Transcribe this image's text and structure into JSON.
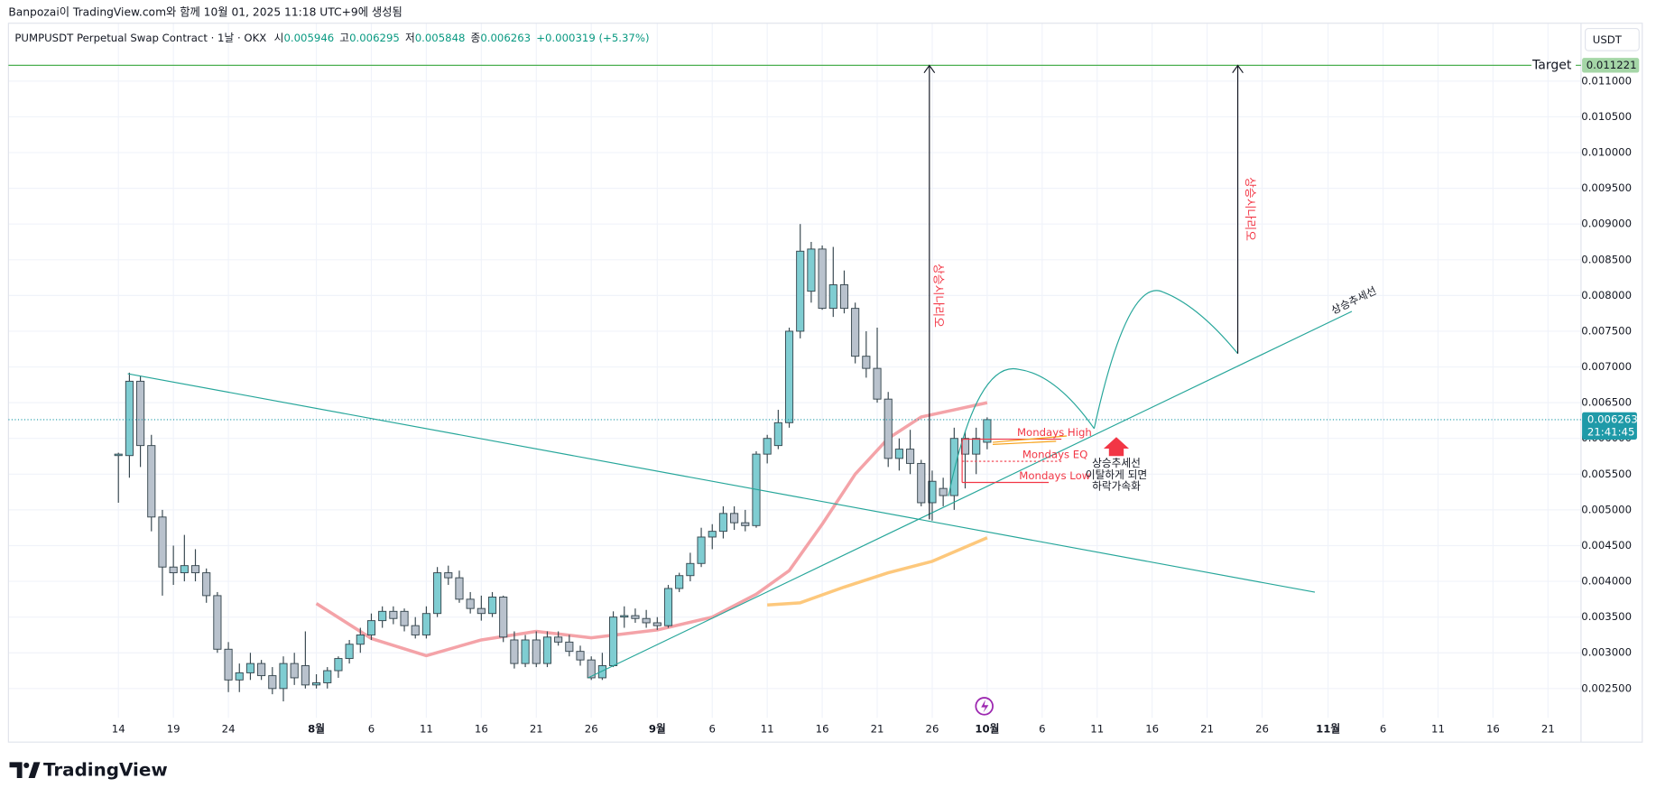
{
  "header": {
    "credit": "Banpozai이 TradingView.com와 함께 10월 01, 2025 11:18 UTC+9에 생성됨",
    "symbol": "PUMPUSDT Perpetual Swap Contract · 1날 · OKX",
    "open_label": "시",
    "high_label": "고",
    "low_label": "저",
    "close_label": "종",
    "change": "+0.000319 (+5.37%)"
  },
  "currency": "USDT",
  "logo": "TradingView",
  "chart_data": {
    "type": "candlestick",
    "up_color": "#7fcdd2",
    "down_color": "#b9c2cd",
    "wick_color": "#37474f",
    "grid": true,
    "xlim": [
      "2025-07-04",
      "2025-11-24"
    ],
    "ylim": [
      0.00209,
      0.01181
    ],
    "yticks": [
      {
        "value": 0.0025,
        "label": "0.002500"
      },
      {
        "value": 0.003,
        "label": "0.003000"
      },
      {
        "value": 0.0035,
        "label": "0.003500"
      },
      {
        "value": 0.004,
        "label": "0.004000"
      },
      {
        "value": 0.0045,
        "label": "0.004500"
      },
      {
        "value": 0.005,
        "label": "0.005000"
      },
      {
        "value": 0.0055,
        "label": "0.005500"
      },
      {
        "value": 0.006,
        "label": "0.006000"
      },
      {
        "value": 0.0065,
        "label": "0.006500"
      },
      {
        "value": 0.007,
        "label": "0.007000"
      },
      {
        "value": 0.0075,
        "label": "0.007500"
      },
      {
        "value": 0.008,
        "label": "0.008000"
      },
      {
        "value": 0.0085,
        "label": "0.008500"
      },
      {
        "value": 0.009,
        "label": "0.009000"
      },
      {
        "value": 0.0095,
        "label": "0.009500"
      },
      {
        "value": 0.01,
        "label": "0.010000"
      },
      {
        "value": 0.0105,
        "label": "0.010500"
      },
      {
        "value": 0.011,
        "label": "0.011000"
      }
    ],
    "xticks": [
      {
        "value": "2025-07-14",
        "label": "14"
      },
      {
        "value": "2025-07-19",
        "label": "19"
      },
      {
        "value": "2025-07-24",
        "label": "24"
      },
      {
        "value": "2025-08-01",
        "label": "8월"
      },
      {
        "value": "2025-08-06",
        "label": "6"
      },
      {
        "value": "2025-08-11",
        "label": "11"
      },
      {
        "value": "2025-08-16",
        "label": "16"
      },
      {
        "value": "2025-08-21",
        "label": "21"
      },
      {
        "value": "2025-08-26",
        "label": "26"
      },
      {
        "value": "2025-09-01",
        "label": "9월"
      },
      {
        "value": "2025-09-06",
        "label": "6"
      },
      {
        "value": "2025-09-11",
        "label": "11"
      },
      {
        "value": "2025-09-16",
        "label": "16"
      },
      {
        "value": "2025-09-21",
        "label": "21"
      },
      {
        "value": "2025-09-26",
        "label": "26"
      },
      {
        "value": "2025-10-01",
        "label": "10월"
      },
      {
        "value": "2025-10-06",
        "label": "6"
      },
      {
        "value": "2025-10-11",
        "label": "11"
      },
      {
        "value": "2025-10-16",
        "label": "16"
      },
      {
        "value": "2025-10-21",
        "label": "21"
      },
      {
        "value": "2025-10-26",
        "label": "26"
      },
      {
        "value": "2025-11-01",
        "label": "11월"
      },
      {
        "value": "2025-11-06",
        "label": "6"
      },
      {
        "value": "2025-11-11",
        "label": "11"
      },
      {
        "value": "2025-11-16",
        "label": "16"
      },
      {
        "value": "2025-11-21",
        "label": "21"
      }
    ],
    "x": [
      "2025-07-14",
      "2025-07-15",
      "2025-07-16",
      "2025-07-17",
      "2025-07-18",
      "2025-07-19",
      "2025-07-20",
      "2025-07-21",
      "2025-07-22",
      "2025-07-23",
      "2025-07-24",
      "2025-07-25",
      "2025-07-26",
      "2025-07-27",
      "2025-07-28",
      "2025-07-29",
      "2025-07-30",
      "2025-07-31",
      "2025-08-01",
      "2025-08-02",
      "2025-08-03",
      "2025-08-04",
      "2025-08-05",
      "2025-08-06",
      "2025-08-07",
      "2025-08-08",
      "2025-08-09",
      "2025-08-10",
      "2025-08-11",
      "2025-08-12",
      "2025-08-13",
      "2025-08-14",
      "2025-08-15",
      "2025-08-16",
      "2025-08-17",
      "2025-08-18",
      "2025-08-19",
      "2025-08-20",
      "2025-08-21",
      "2025-08-22",
      "2025-08-23",
      "2025-08-24",
      "2025-08-25",
      "2025-08-26",
      "2025-08-27",
      "2025-08-28",
      "2025-08-29",
      "2025-08-30",
      "2025-08-31",
      "2025-09-01",
      "2025-09-02",
      "2025-09-03",
      "2025-09-04",
      "2025-09-05",
      "2025-09-06",
      "2025-09-07",
      "2025-09-08",
      "2025-09-09",
      "2025-09-10",
      "2025-09-11",
      "2025-09-12",
      "2025-09-13",
      "2025-09-14",
      "2025-09-15",
      "2025-09-16",
      "2025-09-17",
      "2025-09-18",
      "2025-09-19",
      "2025-09-20",
      "2025-09-21",
      "2025-09-22",
      "2025-09-23",
      "2025-09-24",
      "2025-09-25",
      "2025-09-26",
      "2025-09-27",
      "2025-09-28",
      "2025-09-29",
      "2025-09-30",
      "2025-10-01"
    ],
    "ohlc": [
      [
        0.00576,
        0.0058,
        0.0051,
        0.00578
      ],
      [
        0.00576,
        0.00692,
        0.00545,
        0.0068
      ],
      [
        0.0068,
        0.00688,
        0.0056,
        0.0059
      ],
      [
        0.0059,
        0.00605,
        0.0047,
        0.0049
      ],
      [
        0.0049,
        0.005,
        0.0038,
        0.0042
      ],
      [
        0.0042,
        0.0045,
        0.00395,
        0.00412
      ],
      [
        0.00412,
        0.00465,
        0.004,
        0.00422
      ],
      [
        0.00422,
        0.00445,
        0.004,
        0.00412
      ],
      [
        0.00412,
        0.00418,
        0.0037,
        0.0038
      ],
      [
        0.0038,
        0.00385,
        0.003,
        0.00305
      ],
      [
        0.00305,
        0.00315,
        0.00245,
        0.00262
      ],
      [
        0.00262,
        0.00285,
        0.00245,
        0.00272
      ],
      [
        0.00272,
        0.003,
        0.00262,
        0.00285
      ],
      [
        0.00285,
        0.0029,
        0.00262,
        0.00268
      ],
      [
        0.00268,
        0.0028,
        0.00242,
        0.0025
      ],
      [
        0.0025,
        0.00295,
        0.00232,
        0.00285
      ],
      [
        0.00285,
        0.003,
        0.00255,
        0.00265
      ],
      [
        0.00282,
        0.0033,
        0.0025,
        0.00255
      ],
      [
        0.00255,
        0.0027,
        0.0025,
        0.00258
      ],
      [
        0.00258,
        0.0028,
        0.0025,
        0.00275
      ],
      [
        0.00275,
        0.00295,
        0.00265,
        0.00292
      ],
      [
        0.00292,
        0.00318,
        0.00285,
        0.00312
      ],
      [
        0.00312,
        0.00335,
        0.003,
        0.00325
      ],
      [
        0.00325,
        0.00355,
        0.00318,
        0.00345
      ],
      [
        0.00345,
        0.00365,
        0.00335,
        0.00358
      ],
      [
        0.00358,
        0.00365,
        0.0034,
        0.00348
      ],
      [
        0.00358,
        0.00362,
        0.0033,
        0.00338
      ],
      [
        0.00338,
        0.0035,
        0.0032,
        0.00325
      ],
      [
        0.00325,
        0.00365,
        0.0032,
        0.00355
      ],
      [
        0.00355,
        0.0042,
        0.0035,
        0.00412
      ],
      [
        0.00412,
        0.00422,
        0.00395,
        0.00405
      ],
      [
        0.00405,
        0.00415,
        0.0037,
        0.00375
      ],
      [
        0.00375,
        0.00385,
        0.00355,
        0.00362
      ],
      [
        0.00362,
        0.0038,
        0.00345,
        0.00355
      ],
      [
        0.00355,
        0.00385,
        0.0035,
        0.00378
      ],
      [
        0.00378,
        0.0038,
        0.00315,
        0.00322
      ],
      [
        0.00318,
        0.0033,
        0.00278,
        0.00285
      ],
      [
        0.00285,
        0.00325,
        0.0028,
        0.00318
      ],
      [
        0.00318,
        0.0033,
        0.0028,
        0.00285
      ],
      [
        0.00285,
        0.0033,
        0.0028,
        0.00322
      ],
      [
        0.00322,
        0.0033,
        0.0031,
        0.00315
      ],
      [
        0.00315,
        0.00325,
        0.00295,
        0.00302
      ],
      [
        0.00302,
        0.0031,
        0.00282,
        0.0029
      ],
      [
        0.0029,
        0.00295,
        0.00262,
        0.00265
      ],
      [
        0.00265,
        0.003,
        0.00262,
        0.00282
      ],
      [
        0.00282,
        0.00358,
        0.0028,
        0.0035
      ],
      [
        0.0035,
        0.00365,
        0.00335,
        0.00352
      ],
      [
        0.00352,
        0.00362,
        0.00342,
        0.00348
      ],
      [
        0.00348,
        0.0036,
        0.00335,
        0.00342
      ],
      [
        0.00342,
        0.0035,
        0.00332,
        0.00338
      ],
      [
        0.00338,
        0.00395,
        0.00335,
        0.0039
      ],
      [
        0.0039,
        0.00412,
        0.00385,
        0.00408
      ],
      [
        0.00408,
        0.0044,
        0.004,
        0.00425
      ],
      [
        0.00425,
        0.00475,
        0.0042,
        0.00462
      ],
      [
        0.00462,
        0.0048,
        0.00445,
        0.0047
      ],
      [
        0.0047,
        0.00505,
        0.0046,
        0.00495
      ],
      [
        0.00495,
        0.00505,
        0.00472,
        0.00482
      ],
      [
        0.00482,
        0.005,
        0.0047,
        0.00478
      ],
      [
        0.00478,
        0.00582,
        0.00475,
        0.00578
      ],
      [
        0.00578,
        0.00605,
        0.00565,
        0.006
      ],
      [
        0.0059,
        0.0064,
        0.00585,
        0.00622
      ],
      [
        0.00622,
        0.00755,
        0.00615,
        0.0075
      ],
      [
        0.0075,
        0.009,
        0.0074,
        0.00862
      ],
      [
        0.00806,
        0.00875,
        0.0079,
        0.00865
      ],
      [
        0.00865,
        0.0087,
        0.0078,
        0.00782
      ],
      [
        0.00782,
        0.00868,
        0.0077,
        0.00815
      ],
      [
        0.00815,
        0.00835,
        0.00775,
        0.00782
      ],
      [
        0.00782,
        0.0079,
        0.00705,
        0.00715
      ],
      [
        0.00715,
        0.0075,
        0.00685,
        0.00698
      ],
      [
        0.00698,
        0.00755,
        0.0065,
        0.00655
      ],
      [
        0.00655,
        0.00665,
        0.0056,
        0.00572
      ],
      [
        0.00572,
        0.006,
        0.00555,
        0.00585
      ],
      [
        0.00585,
        0.00612,
        0.0055,
        0.00565
      ],
      [
        0.00565,
        0.0057,
        0.00505,
        0.0051
      ],
      [
        0.0051,
        0.00555,
        0.00485,
        0.0054
      ],
      [
        0.0053,
        0.00545,
        0.00505,
        0.0052
      ],
      [
        0.0052,
        0.00615,
        0.005,
        0.006
      ],
      [
        0.006,
        0.0061,
        0.0053,
        0.00578
      ],
      [
        0.00578,
        0.00615,
        0.0055,
        0.006
      ],
      [
        0.005946,
        0.006295,
        0.005848,
        0.006263
      ]
    ],
    "overlays": [
      {
        "color": "#f4a3a8",
        "x": [
          "2025-08-01",
          "2025-08-06",
          "2025-08-11",
          "2025-08-16",
          "2025-08-21",
          "2025-08-26",
          "2025-09-01",
          "2025-09-06",
          "2025-09-10",
          "2025-09-13",
          "2025-09-16",
          "2025-09-19",
          "2025-09-22",
          "2025-09-25",
          "2025-09-28",
          "2025-10-01"
        ],
        "values": [
          0.00369,
          0.0032,
          0.00296,
          0.00318,
          0.0033,
          0.00321,
          0.00332,
          0.0035,
          0.00382,
          0.00415,
          0.0048,
          0.0055,
          0.006,
          0.0063,
          0.0064,
          0.0065
        ]
      },
      {
        "color": "#fdc87c",
        "x": [
          "2025-09-11",
          "2025-09-14",
          "2025-09-18",
          "2025-09-22",
          "2025-09-26",
          "2025-10-01"
        ],
        "values": [
          0.00367,
          0.0037,
          0.00392,
          0.00412,
          0.00428,
          0.00461
        ]
      }
    ],
    "target": {
      "label": "Target",
      "value": 0.011221,
      "color": "#4caf50"
    },
    "last_price": {
      "countdown": "21:41:45",
      "color": "#1f9aa8"
    },
    "annotations": {
      "mondays_high": "Mondays High",
      "mondays_eq": "Mondays EQ",
      "mondays_low": "Mondays Low",
      "trend_label": "상승추세선",
      "scenario": [
        "상승시나리오",
        "상승시나리오"
      ],
      "note": [
        "상승추세선",
        "이탈하게 되면",
        "하락가속화"
      ]
    }
  }
}
